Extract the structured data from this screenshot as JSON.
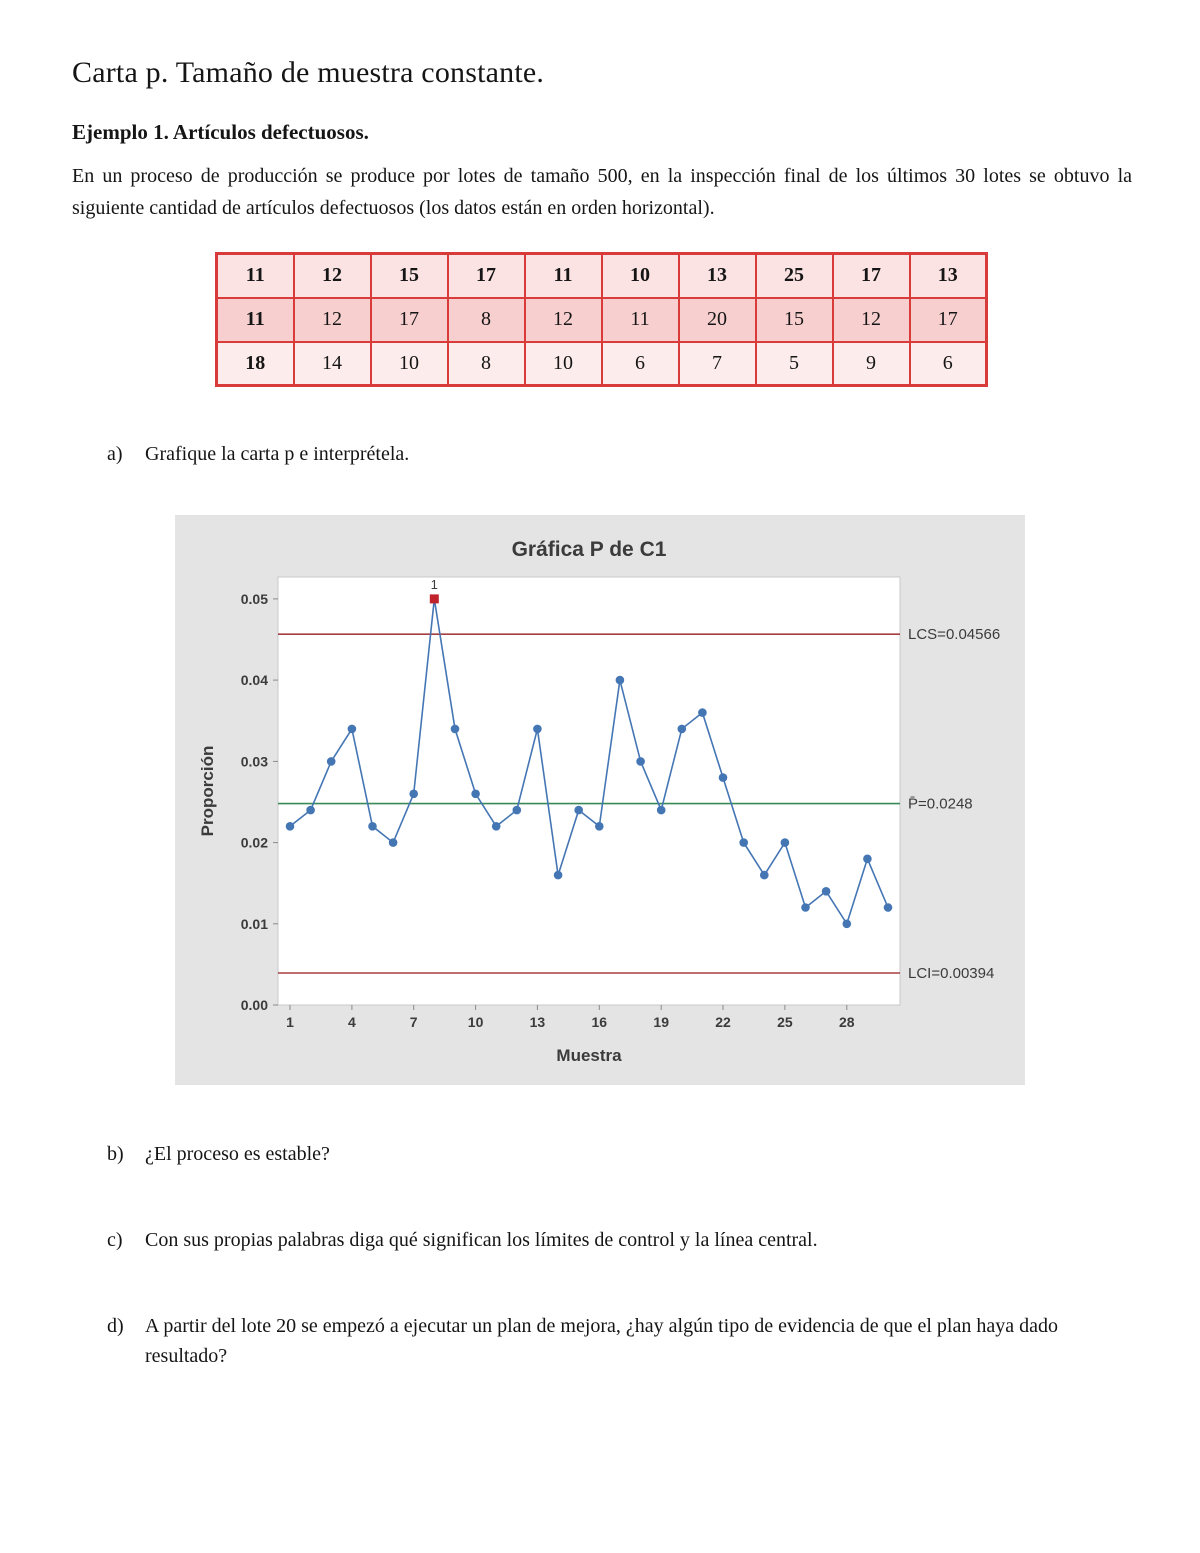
{
  "page": {
    "title": "Carta p. Tamaño de muestra constante.",
    "subtitle": "Ejemplo 1. Artículos defectuosos.",
    "intro": "En un proceso de producción se produce por lotes de tamaño 500, en la inspección final de los últimos 30 lotes se obtuvo la siguiente cantidad de artículos defectuosos (los datos están en orden horizontal)."
  },
  "data_table": {
    "border_color": "#d93a3a",
    "row_fills": [
      "#fbe3e3",
      "#f8cfcf",
      "#fdecec"
    ],
    "rows": [
      [
        "11",
        "12",
        "15",
        "17",
        "11",
        "10",
        "13",
        "25",
        "17",
        "13"
      ],
      [
        "11",
        "12",
        "17",
        "8",
        "12",
        "11",
        "20",
        "15",
        "12",
        "17"
      ],
      [
        "18",
        "14",
        "10",
        "8",
        "10",
        "6",
        "7",
        "5",
        "9",
        "6"
      ]
    ]
  },
  "questions": [
    {
      "label": "a)",
      "text": "Grafique la carta p e interprétela."
    },
    {
      "label": "b)",
      "text": "¿El proceso es estable?"
    },
    {
      "label": "c)",
      "text": "Con sus propias palabras diga qué significan los límites de control y la línea central."
    },
    {
      "label": "d)",
      "text": "A partir del lote 20 se empezó a ejecutar un plan de mejora, ¿hay algún tipo de evidencia de que el plan haya dado resultado?"
    }
  ],
  "chart_data": {
    "type": "line",
    "title": "Gráfica P de C1",
    "xlabel": "Muestra",
    "ylabel": "Proporción",
    "sample_size": 500,
    "values": [
      0.022,
      0.024,
      0.03,
      0.034,
      0.022,
      0.02,
      0.026,
      0.05,
      0.034,
      0.026,
      0.022,
      0.024,
      0.034,
      0.016,
      0.024,
      0.022,
      0.04,
      0.03,
      0.024,
      0.034,
      0.036,
      0.028,
      0.02,
      0.016,
      0.02,
      0.012,
      0.014,
      0.01,
      0.018,
      0.012
    ],
    "ucl": 0.04566,
    "center": 0.0248,
    "lcl": 0.00394,
    "ucl_label": "LCS=0.04566",
    "center_label": "P̄=0.0248",
    "lcl_label": "LCI=0.00394",
    "ylim": [
      0,
      0.0527
    ],
    "yticks": [
      "0.00",
      "0.01",
      "0.02",
      "0.03",
      "0.04",
      "0.05"
    ],
    "xticks": [
      1,
      4,
      7,
      10,
      13,
      16,
      19,
      22,
      25,
      28
    ],
    "grid": false,
    "legend": "none",
    "out_of_control": {
      "index": 8,
      "label": "1"
    },
    "colors": {
      "panel_bg": "#e4e4e4",
      "plot_bg": "#ffffff",
      "plot_border": "#c8c8c8",
      "series": "#4576b4",
      "limit": "#a63f41",
      "center": "#3a8a57",
      "out": "#c0222c",
      "text": "#3b3b3b"
    }
  }
}
